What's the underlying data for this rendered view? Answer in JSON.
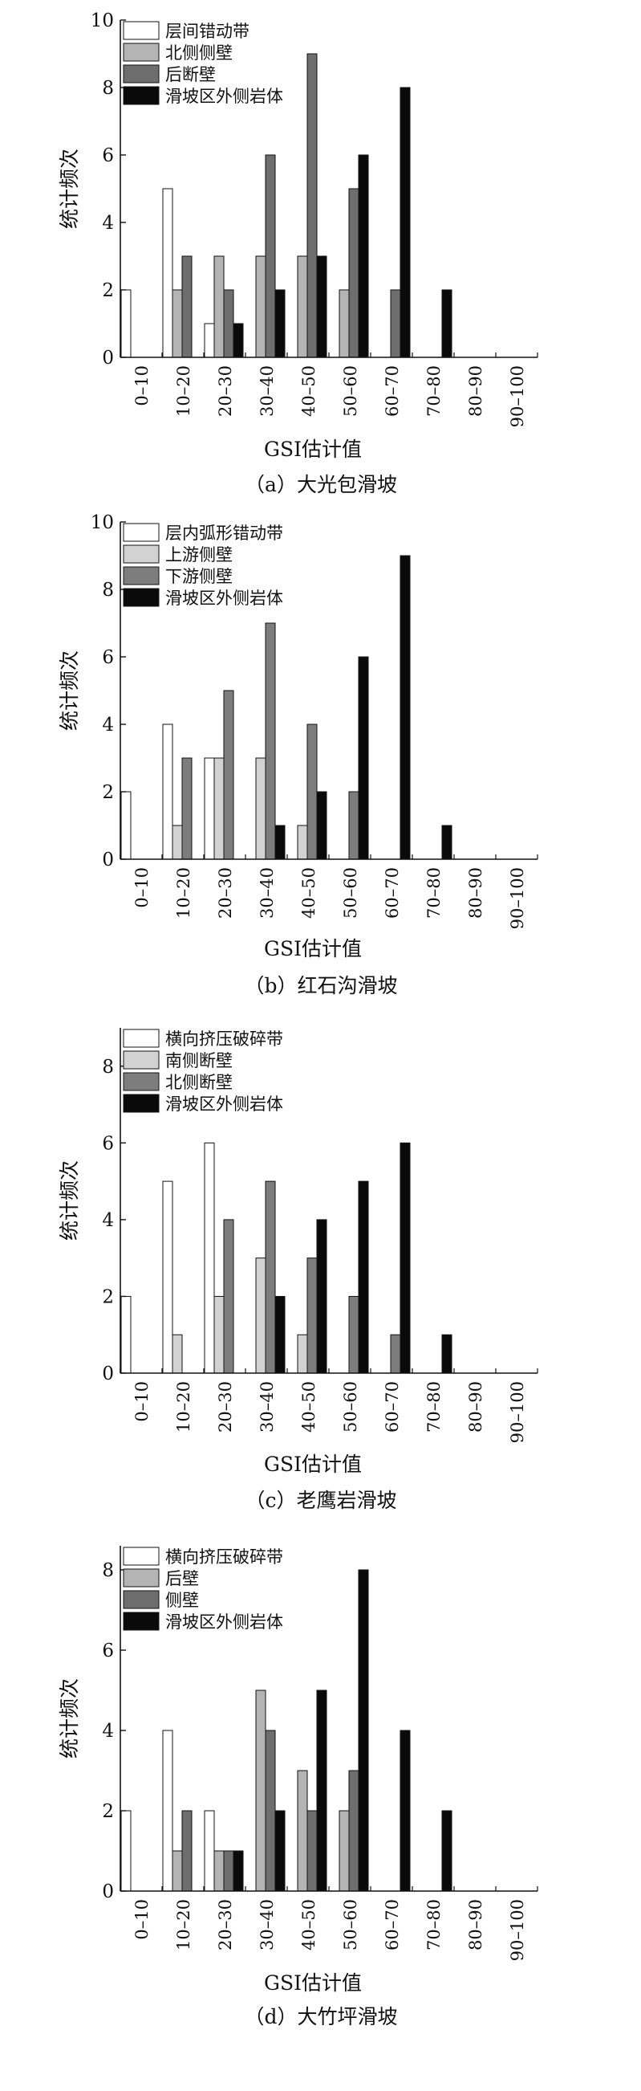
{
  "chart_data": [
    {
      "type": "bar",
      "title": "（a）大光包滑坡",
      "xlabel": "GSI估计值",
      "ylabel": "统计频次",
      "ylim": [
        0,
        10
      ],
      "yticks": [
        0,
        2,
        4,
        6,
        8,
        10
      ],
      "categories": [
        "0–10",
        "10–20",
        "20–30",
        "30–40",
        "40–50",
        "50–60",
        "60–70",
        "70–80",
        "80–90",
        "90–100"
      ],
      "legend_position": "top-left",
      "grid": false,
      "series": [
        {
          "name": "层间错动带",
          "color": "#ffffff",
          "values": [
            2,
            5,
            1,
            0,
            0,
            0,
            0,
            0,
            0,
            0
          ]
        },
        {
          "name": "北侧侧壁",
          "color": "#b4b4b4",
          "values": [
            0,
            2,
            3,
            3,
            3,
            2,
            0,
            0,
            0,
            0
          ]
        },
        {
          "name": "后断壁",
          "color": "#6e6e6e",
          "values": [
            0,
            3,
            2,
            6,
            9,
            5,
            2,
            0,
            0,
            0
          ]
        },
        {
          "name": "滑坡区外侧岩体",
          "color": "#0a0a0a",
          "values": [
            0,
            0,
            1,
            2,
            3,
            6,
            8,
            2,
            0,
            0
          ]
        }
      ]
    },
    {
      "type": "bar",
      "title": "（b）红石沟滑坡",
      "xlabel": "GSI估计值",
      "ylabel": "统计频次",
      "ylim": [
        0,
        10
      ],
      "yticks": [
        0,
        2,
        4,
        6,
        8,
        10
      ],
      "categories": [
        "0–10",
        "10–20",
        "20–30",
        "30–40",
        "40–50",
        "50–60",
        "60–70",
        "70–80",
        "80–90",
        "90–100"
      ],
      "legend_position": "top-left",
      "grid": false,
      "series": [
        {
          "name": "层内弧形错动带",
          "color": "#ffffff",
          "values": [
            2,
            4,
            3,
            0,
            0,
            0,
            0,
            0,
            0,
            0
          ]
        },
        {
          "name": "上游侧壁",
          "color": "#d2d2d2",
          "values": [
            0,
            1,
            3,
            3,
            1,
            0,
            0,
            0,
            0,
            0
          ]
        },
        {
          "name": "下游侧壁",
          "color": "#7d7d7d",
          "values": [
            0,
            3,
            5,
            7,
            4,
            2,
            0,
            0,
            0,
            0
          ]
        },
        {
          "name": "滑坡区外侧岩体",
          "color": "#0a0a0a",
          "values": [
            0,
            0,
            0,
            1,
            2,
            6,
            9,
            1,
            0,
            0
          ]
        }
      ]
    },
    {
      "type": "bar",
      "title": "（c）老鹰岩滑坡",
      "xlabel": "GSI估计值",
      "ylabel": "统计频次",
      "ylim": [
        0,
        9
      ],
      "yticks": [
        0,
        2,
        4,
        6,
        8
      ],
      "categories": [
        "0–10",
        "10–20",
        "20–30",
        "30–40",
        "40–50",
        "50–60",
        "60–70",
        "70–80",
        "80–90",
        "90–100"
      ],
      "legend_position": "top-left",
      "grid": false,
      "series": [
        {
          "name": "横向挤压破碎带",
          "color": "#ffffff",
          "values": [
            2,
            5,
            6,
            0,
            0,
            0,
            0,
            0,
            0,
            0
          ]
        },
        {
          "name": "南侧断壁",
          "color": "#d2d2d2",
          "values": [
            0,
            1,
            2,
            3,
            1,
            0,
            0,
            0,
            0,
            0
          ]
        },
        {
          "name": "北侧断壁",
          "color": "#7d7d7d",
          "values": [
            0,
            0,
            4,
            5,
            3,
            2,
            1,
            0,
            0,
            0
          ]
        },
        {
          "name": "滑坡区外侧岩体",
          "color": "#0a0a0a",
          "values": [
            0,
            0,
            0,
            2,
            4,
            5,
            6,
            1,
            0,
            0
          ]
        }
      ]
    },
    {
      "type": "bar",
      "title": "（d）大竹坪滑坡",
      "xlabel": "GSI估计值",
      "ylabel": "统计频次",
      "ylim": [
        0,
        8.6
      ],
      "yticks": [
        0,
        2,
        4,
        6,
        8
      ],
      "categories": [
        "0–10",
        "10–20",
        "20–30",
        "30–40",
        "40–50",
        "50–60",
        "60–70",
        "70–80",
        "80–90",
        "90–100"
      ],
      "legend_position": "top-left",
      "grid": false,
      "series": [
        {
          "name": "横向挤压破碎带",
          "color": "#ffffff",
          "values": [
            2,
            4,
            2,
            0,
            0,
            0,
            0,
            0,
            0,
            0
          ]
        },
        {
          "name": "后壁",
          "color": "#b4b4b4",
          "values": [
            0,
            1,
            1,
            5,
            3,
            2,
            0,
            0,
            0,
            0
          ]
        },
        {
          "name": "侧壁",
          "color": "#6e6e6e",
          "values": [
            0,
            2,
            1,
            4,
            2,
            3,
            0,
            0,
            0,
            0
          ]
        },
        {
          "name": "滑坡区外侧岩体",
          "color": "#0a0a0a",
          "values": [
            0,
            0,
            1,
            2,
            5,
            8,
            4,
            2,
            0,
            0
          ]
        }
      ]
    }
  ]
}
